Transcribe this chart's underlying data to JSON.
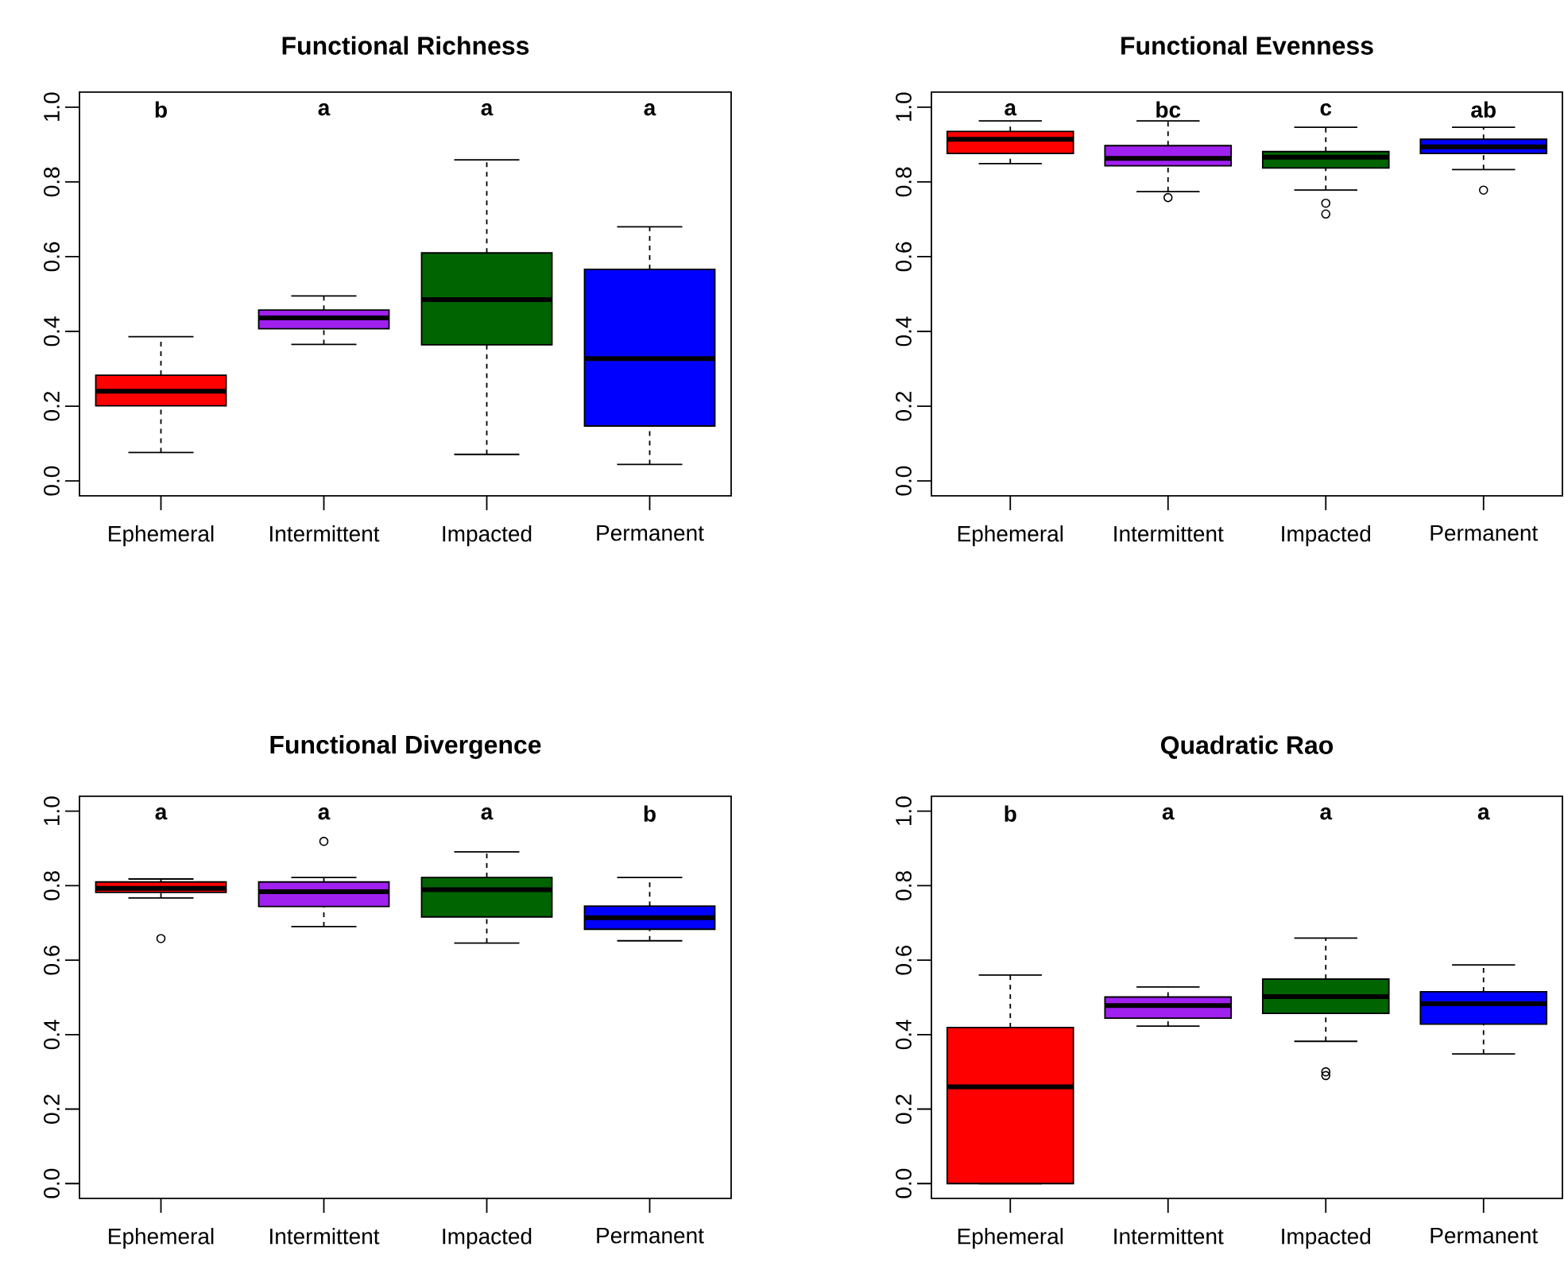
{
  "chart_data": [
    {
      "type": "box",
      "title": "Functional Richness",
      "categories": [
        "Ephemeral",
        "Intermittent",
        "Impacted",
        "Permanent"
      ],
      "colors": [
        "#ff0000",
        "#a020f0",
        "#006400",
        "#0000ff"
      ],
      "boxes": [
        {
          "low": 0.076,
          "q1": 0.201,
          "median": 0.24,
          "q3": 0.283,
          "high": 0.386
        },
        {
          "low": 0.365,
          "q1": 0.407,
          "median": 0.436,
          "q3": 0.457,
          "high": 0.495
        },
        {
          "low": 0.071,
          "q1": 0.364,
          "median": 0.485,
          "q3": 0.61,
          "high": 0.859
        },
        {
          "low": 0.044,
          "q1": 0.147,
          "median": 0.327,
          "q3": 0.566,
          "high": 0.68
        }
      ],
      "ylim": [
        -0.04,
        1.04
      ],
      "yticks": [
        {
          "value": 0,
          "label": "0.0"
        },
        {
          "value": 0.2,
          "label": "0.2"
        },
        {
          "value": 0.4,
          "label": "0.4"
        },
        {
          "value": 0.6,
          "label": "0.6"
        },
        {
          "value": 0.8,
          "label": "0.8"
        },
        {
          "value": 1,
          "label": "1.0"
        }
      ],
      "annotations": [
        "b",
        "a",
        "a",
        "a"
      ]
    },
    {
      "type": "box",
      "title": "Functional Evenness",
      "categories": [
        "Ephemeral",
        "Intermittent",
        "Impacted",
        "Permanent"
      ],
      "colors": [
        "#ff0000",
        "#a020f0",
        "#006400",
        "#0000ff"
      ],
      "boxes": [
        {
          "low": 0.849,
          "q1": 0.876,
          "median": 0.914,
          "q3": 0.935,
          "high": 0.963
        },
        {
          "low": 0.774,
          "q1": 0.843,
          "median": 0.863,
          "q3": 0.897,
          "high": 0.963,
          "outliers": [
            0.758
          ]
        },
        {
          "low": 0.778,
          "q1": 0.837,
          "median": 0.866,
          "q3": 0.881,
          "high": 0.946,
          "outliers": [
            0.743,
            0.714
          ]
        },
        {
          "low": 0.833,
          "q1": 0.876,
          "median": 0.894,
          "q3": 0.914,
          "high": 0.946,
          "outliers": [
            0.778
          ]
        }
      ],
      "ylim": [
        -0.04,
        1.04
      ],
      "yticks": [
        {
          "value": 0,
          "label": "0.0"
        },
        {
          "value": 0.2,
          "label": "0.2"
        },
        {
          "value": 0.4,
          "label": "0.4"
        },
        {
          "value": 0.6,
          "label": "0.6"
        },
        {
          "value": 0.8,
          "label": "0.8"
        },
        {
          "value": 1,
          "label": "1.0"
        }
      ],
      "annotations": [
        "a",
        "bc",
        "c",
        "ab"
      ]
    },
    {
      "type": "box",
      "title": "Functional Divergence",
      "categories": [
        "Ephemeral",
        "Intermittent",
        "Impacted",
        "Permanent"
      ],
      "colors": [
        "#ff0000",
        "#a020f0",
        "#006400",
        "#0000ff"
      ],
      "boxes": [
        {
          "low": 0.767,
          "q1": 0.782,
          "median": 0.793,
          "q3": 0.81,
          "high": 0.818,
          "outliers": [
            0.658
          ]
        },
        {
          "low": 0.69,
          "q1": 0.744,
          "median": 0.784,
          "q3": 0.81,
          "high": 0.822,
          "outliers": [
            0.919
          ]
        },
        {
          "low": 0.646,
          "q1": 0.716,
          "median": 0.789,
          "q3": 0.822,
          "high": 0.891
        },
        {
          "low": 0.652,
          "q1": 0.683,
          "median": 0.714,
          "q3": 0.745,
          "high": 0.822
        }
      ],
      "ylim": [
        -0.04,
        1.04
      ],
      "yticks": [
        {
          "value": 0,
          "label": "0.0"
        },
        {
          "value": 0.2,
          "label": "0.2"
        },
        {
          "value": 0.4,
          "label": "0.4"
        },
        {
          "value": 0.6,
          "label": "0.6"
        },
        {
          "value": 0.8,
          "label": "0.8"
        },
        {
          "value": 1,
          "label": "1.0"
        }
      ],
      "annotations": [
        "a",
        "a",
        "a",
        "b"
      ]
    },
    {
      "type": "box",
      "title": "Quadratic Rao",
      "categories": [
        "Ephemeral",
        "Intermittent",
        "Impacted",
        "Permanent"
      ],
      "colors": [
        "#ff0000",
        "#a020f0",
        "#006400",
        "#0000ff"
      ],
      "boxes": [
        {
          "low": 0.0,
          "q1": 0.0,
          "median": 0.26,
          "q3": 0.419,
          "high": 0.56
        },
        {
          "low": 0.423,
          "q1": 0.444,
          "median": 0.478,
          "q3": 0.501,
          "high": 0.528
        },
        {
          "low": 0.382,
          "q1": 0.457,
          "median": 0.502,
          "q3": 0.549,
          "high": 0.659,
          "outliers": [
            0.3,
            0.29
          ]
        },
        {
          "low": 0.348,
          "q1": 0.428,
          "median": 0.483,
          "q3": 0.515,
          "high": 0.587
        }
      ],
      "ylim": [
        -0.04,
        1.04
      ],
      "yticks": [
        {
          "value": 0,
          "label": "0.0"
        },
        {
          "value": 0.2,
          "label": "0.2"
        },
        {
          "value": 0.4,
          "label": "0.4"
        },
        {
          "value": 0.6,
          "label": "0.6"
        },
        {
          "value": 0.8,
          "label": "0.8"
        },
        {
          "value": 1,
          "label": "1.0"
        }
      ],
      "annotations": [
        "b",
        "a",
        "a",
        "a"
      ]
    }
  ]
}
